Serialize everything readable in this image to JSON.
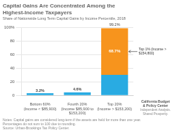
{
  "chart_data": {
    "type": "bar",
    "title": "Capital Gains Are Concentrated Among the\nHighest-Income Taxpayers",
    "subtitle": "Share of Nationwide Long Term Capital Gains by Income Percentile, 2018",
    "categories": [
      "Bottom 60%\n(Income < $85,900)",
      "Fourth 20%\n(Income $85,900 to $153,200)",
      "Top 20%\n(Income > $153,200)"
    ],
    "series": [
      {
        "color": "#29abe2",
        "values": [
          3.2,
          4.6,
          30.5
        ],
        "value_labels": [
          "3.2%",
          "4.6%",
          null
        ]
      },
      {
        "color": "#f7941d",
        "values": [
          0,
          0,
          68.7
        ],
        "value_labels": [
          null,
          null,
          "68.7%"
        ]
      }
    ],
    "stacked": true,
    "totals": [
      null,
      null,
      99.2
    ],
    "total_labels": [
      null,
      null,
      "99.2%"
    ],
    "annotation": "Top 1% (Income > $154,800)",
    "notes": "Notes: Capital gains are considered long-term if the assets are held for more than one year.\nPercentages do not sum to 100 due to rounding.\nSource: Urban-Brookings Tax Policy Center.",
    "logo": [
      "California Budget",
      "& Policy Center",
      "Independent Analysis. Shared Prosperity."
    ],
    "ylim": [
      0,
      100
    ],
    "yticks": [
      0,
      20,
      40,
      60,
      80,
      {
        "value": 100,
        "label": "100%"
      }
    ],
    "grid": true
  }
}
